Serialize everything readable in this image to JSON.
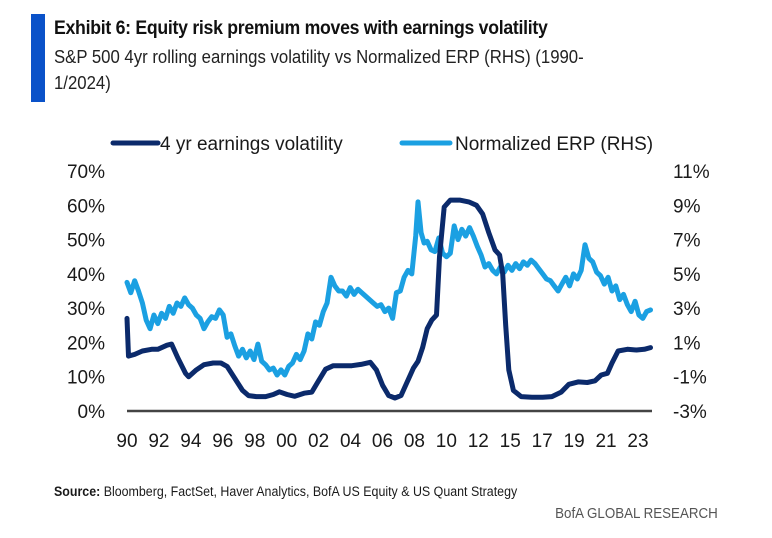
{
  "header": {
    "title": "Exhibit 6: Equity risk premium moves with earnings volatility",
    "subtitle": "S&P 500 4yr rolling earnings volatility vs Normalized ERP (RHS) (1990-1/2024)"
  },
  "footer": {
    "source_label": "Source:",
    "source_text": " Bloomberg, FactSet, Haver Analytics, BofA US Equity & US Quant Strategy",
    "brand": "BofA GLOBAL RESEARCH"
  },
  "colors": {
    "accent": "#0a52c9",
    "volatility": "#0b2a6b",
    "erp": "#1ba0e2",
    "axis": "#444444"
  },
  "chart_data": {
    "type": "line",
    "title": "Exhibit 6: Equity risk premium moves with earnings volatility",
    "subtitle": "S&P 500 4yr rolling earnings volatility vs Normalized ERP (RHS) (1990-1/2024)",
    "xlabel": "",
    "ylabel": "",
    "y2label": "",
    "legend_position": "top",
    "grid": false,
    "x_range": [
      1990,
      2024.1
    ],
    "ylim": [
      0,
      70
    ],
    "y2lim": [
      -3,
      11
    ],
    "x_tick_labels": [
      "90",
      "92",
      "94",
      "96",
      "98",
      "00",
      "02",
      "04",
      "06",
      "08",
      "10",
      "12",
      "15",
      "17",
      "19",
      "21",
      "23"
    ],
    "y_tick_labels": [
      "0%",
      "10%",
      "20%",
      "30%",
      "40%",
      "50%",
      "60%",
      "70%"
    ],
    "y_tick_values": [
      0,
      10,
      20,
      30,
      40,
      50,
      60,
      70
    ],
    "y2_tick_labels": [
      "-3%",
      "-1%",
      "1%",
      "3%",
      "5%",
      "7%",
      "9%",
      "11%"
    ],
    "y2_tick_values": [
      -3,
      -1,
      1,
      3,
      5,
      7,
      9,
      11
    ],
    "series": [
      {
        "name": "4 yr earnings volatility",
        "axis": "left",
        "unit": "%",
        "x": [
          1990.0,
          1990.1,
          1990.5,
          1991.0,
          1991.6,
          1992.0,
          1992.6,
          1992.9,
          1993.3,
          1993.8,
          1994.0,
          1994.5,
          1995.0,
          1995.6,
          1996.1,
          1996.5,
          1997.0,
          1997.5,
          1997.9,
          1998.4,
          1999.0,
          1999.5,
          1999.9,
          2000.4,
          2000.9,
          2001.5,
          2002.0,
          2002.4,
          2002.9,
          2003.4,
          2004.0,
          2004.6,
          2005.2,
          2005.8,
          2006.2,
          2006.6,
          2007.0,
          2007.4,
          2007.8,
          2008.2,
          2008.6,
          2008.9,
          2009.2,
          2009.5,
          2009.8,
          2010.1,
          2010.3,
          2010.6,
          2011.0,
          2011.6,
          2012.2,
          2012.7,
          2013.1,
          2013.5,
          2013.9,
          2014.2,
          2014.4,
          2014.6,
          2014.8,
          2015.1,
          2015.6,
          2016.3,
          2017.0,
          2017.6,
          2018.2,
          2018.7,
          2019.3,
          2019.9,
          2020.4,
          2020.8,
          2021.2,
          2021.5,
          2021.9,
          2022.5,
          2023.1,
          2023.6,
          2024.0
        ],
        "values": [
          27,
          16,
          16.5,
          17.5,
          18,
          18,
          19.2,
          19.5,
          15.5,
          11,
          10,
          12,
          13.5,
          14,
          14,
          13,
          9.5,
          6,
          4.5,
          4.2,
          4.2,
          4.8,
          5.6,
          4.8,
          4.3,
          5.2,
          5.5,
          8.5,
          12.2,
          13.2,
          13.2,
          13.2,
          13.6,
          14.2,
          12,
          7.5,
          4.5,
          3.8,
          4.5,
          8.5,
          12.5,
          14.5,
          18.5,
          24,
          26.5,
          28,
          45,
          59.5,
          61.5,
          61.5,
          61,
          60,
          57.5,
          52,
          47,
          45.5,
          40,
          25,
          12,
          6,
          4.2,
          4,
          4,
          4.2,
          5.5,
          7.8,
          8.5,
          8.3,
          8.8,
          10.5,
          11,
          14,
          17.5,
          18,
          17.8,
          18,
          18.5
        ]
      },
      {
        "name": "Normalized ERP (RHS)",
        "axis": "right",
        "unit": "%",
        "x": [
          1990.0,
          1990.25,
          1990.5,
          1990.75,
          1991.0,
          1991.25,
          1991.5,
          1991.75,
          1992.0,
          1992.25,
          1992.5,
          1992.75,
          1993.0,
          1993.25,
          1993.5,
          1993.75,
          1994.0,
          1994.25,
          1994.5,
          1994.75,
          1995.0,
          1995.25,
          1995.5,
          1995.75,
          1996.0,
          1996.25,
          1996.5,
          1996.75,
          1997.0,
          1997.25,
          1997.5,
          1997.75,
          1998.0,
          1998.25,
          1998.5,
          1998.75,
          1999.0,
          1999.25,
          1999.5,
          1999.75,
          2000.0,
          2000.25,
          2000.5,
          2000.75,
          2001.0,
          2001.25,
          2001.5,
          2001.75,
          2002.0,
          2002.25,
          2002.5,
          2002.75,
          2003.0,
          2003.25,
          2003.5,
          2003.75,
          2004.0,
          2004.25,
          2004.5,
          2004.75,
          2005.0,
          2005.25,
          2005.5,
          2005.75,
          2006.0,
          2006.25,
          2006.5,
          2006.75,
          2007.0,
          2007.25,
          2007.5,
          2007.75,
          2008.0,
          2008.25,
          2008.5,
          2008.75,
          2008.9,
          2009.1,
          2009.3,
          2009.5,
          2009.75,
          2010.0,
          2010.25,
          2010.5,
          2010.75,
          2011.0,
          2011.25,
          2011.5,
          2011.75,
          2012.0,
          2012.25,
          2012.5,
          2012.75,
          2013.0,
          2013.25,
          2013.5,
          2013.75,
          2014.0,
          2014.25,
          2014.5,
          2014.75,
          2015.0,
          2015.25,
          2015.5,
          2015.75,
          2016.0,
          2016.25,
          2016.5,
          2016.75,
          2017.0,
          2017.25,
          2017.5,
          2017.75,
          2018.0,
          2018.25,
          2018.5,
          2018.75,
          2019.0,
          2019.25,
          2019.5,
          2019.75,
          2020.0,
          2020.25,
          2020.5,
          2020.75,
          2021.0,
          2021.25,
          2021.5,
          2021.75,
          2022.0,
          2022.25,
          2022.5,
          2022.75,
          2023.0,
          2023.25,
          2023.5,
          2023.75,
          2024.0
        ],
        "values": [
          4.5,
          3.9,
          4.6,
          4.0,
          3.3,
          2.3,
          1.8,
          2.6,
          2.1,
          2.7,
          2.4,
          3.1,
          2.7,
          3.3,
          3.1,
          3.6,
          3.2,
          3.0,
          2.6,
          2.4,
          1.8,
          2.2,
          2.5,
          2.4,
          2.9,
          2.6,
          1.3,
          1.5,
          0.8,
          0.2,
          0.6,
          0.1,
          0.5,
          0.0,
          0.9,
          -0.1,
          -0.3,
          -0.6,
          -0.5,
          -0.9,
          -0.6,
          -0.9,
          -0.4,
          -0.2,
          0.3,
          0.0,
          0.5,
          1.5,
          1.2,
          2.2,
          2.0,
          2.8,
          3.3,
          4.8,
          4.3,
          4.0,
          4.0,
          3.7,
          4.2,
          3.8,
          4.1,
          3.9,
          3.7,
          3.5,
          3.3,
          3.1,
          3.2,
          2.8,
          3.0,
          2.4,
          3.9,
          4.0,
          4.8,
          5.2,
          5.0,
          7.2,
          9.2,
          7.4,
          6.8,
          6.9,
          6.4,
          6.3,
          7.1,
          6.2,
          6.0,
          6.2,
          7.8,
          7.0,
          7.6,
          7.2,
          7.7,
          7.2,
          6.6,
          6.1,
          5.4,
          5.6,
          5.2,
          5.0,
          5.4,
          5.1,
          5.5,
          5.2,
          5.6,
          5.3,
          5.7,
          5.5,
          5.8,
          5.6,
          5.3,
          5.0,
          4.7,
          4.6,
          4.3,
          4.0,
          4.4,
          4.8,
          4.3,
          5.0,
          4.7,
          5.2,
          6.7,
          5.9,
          5.7,
          5.1,
          4.9,
          4.4,
          4.8,
          4.0,
          4.3,
          3.5,
          3.8,
          3.2,
          2.8,
          3.4,
          2.6,
          2.4,
          2.8,
          2.9
        ]
      }
    ]
  }
}
